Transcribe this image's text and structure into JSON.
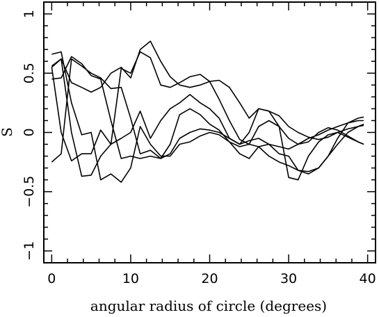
{
  "chart_data": {
    "type": "line",
    "title": "",
    "xlabel": "angular radius of circle (degrees)",
    "ylabel": "S",
    "xlim": [
      -1,
      41
    ],
    "ylim": [
      -1.1,
      1.1
    ],
    "xticks": [
      0,
      10,
      20,
      30,
      40
    ],
    "xtick_labels": [
      "0",
      "10",
      "20",
      "30",
      "40"
    ],
    "yticks": [
      -1,
      -0.5,
      0,
      0.5,
      1
    ],
    "ytick_labels": [
      "−1",
      "−0.5",
      "0",
      "0.5",
      "1"
    ],
    "grid": false,
    "legend": "none",
    "line_color": "#000000",
    "series": [
      {
        "x": [
          0,
          1.2,
          2.5,
          3.8,
          5,
          6.2,
          7.5,
          8.8,
          10,
          11.2,
          12.5,
          13.8,
          15,
          16.2,
          17.5,
          18.8,
          20,
          21.2,
          22.5,
          23.8,
          25,
          26.2,
          27.5,
          28.8,
          30,
          31.2,
          32.5,
          33.8,
          35,
          36.2,
          37.5,
          38.8,
          39.5
        ],
        "y": [
          0.66,
          0.68,
          0.25,
          -0.02,
          0.0,
          -0.4,
          -0.35,
          -0.42,
          -0.3,
          0.05,
          -0.1,
          -0.2,
          -0.2,
          -0.1,
          -0.08,
          -0.03,
          0.0,
          -0.02,
          -0.08,
          -0.12,
          -0.1,
          -0.12,
          -0.2,
          -0.25,
          -0.28,
          -0.32,
          -0.33,
          -0.3,
          -0.2,
          -0.1,
          0.0,
          0.05,
          0.07
        ]
      },
      {
        "x": [
          0,
          1.2,
          2.5,
          3.8,
          5,
          6.2,
          7.5,
          8.8,
          10,
          11.2,
          12.5,
          13.8,
          15,
          16.2,
          17.5,
          18.8,
          20,
          21.2,
          22.5,
          23.8,
          25,
          26.2,
          27.5,
          28.8,
          30,
          31.2,
          32.5,
          33.8,
          35,
          36.2,
          37.5,
          38.8,
          39.5
        ],
        "y": [
          0.56,
          0.62,
          0.42,
          0.38,
          0.34,
          0.38,
          0.5,
          0.55,
          0.46,
          0.7,
          0.77,
          0.6,
          0.47,
          0.4,
          0.38,
          0.4,
          0.43,
          0.44,
          0.38,
          0.25,
          0.12,
          0.2,
          0.18,
          0.14,
          0.05,
          0.0,
          -0.04,
          -0.06,
          -0.04,
          0.0,
          0.03,
          0.05,
          0.06
        ]
      },
      {
        "x": [
          0,
          1.2,
          2.5,
          3.8,
          5,
          6.2,
          7.5,
          8.8,
          10,
          11.2,
          12.5,
          13.8,
          15,
          16.2,
          17.5,
          18.8,
          20,
          21.2,
          22.5,
          23.8,
          25,
          26.2,
          27.5,
          28.8,
          30,
          31.2,
          32.5,
          33.8,
          35,
          36.2,
          37.5,
          38.8,
          39.5
        ],
        "y": [
          -0.25,
          -0.18,
          0.62,
          0.56,
          0.5,
          0.46,
          0.37,
          0.38,
          0.12,
          -0.18,
          -0.15,
          -0.22,
          -0.18,
          -0.05,
          0.0,
          0.03,
          0.02,
          0.0,
          -0.05,
          -0.1,
          -0.07,
          -0.05,
          -0.1,
          -0.12,
          -0.14,
          -0.1,
          -0.05,
          -0.02,
          0.02,
          0.05,
          0.08,
          0.1,
          0.1
        ]
      },
      {
        "x": [
          0,
          1.2,
          2.5,
          3.8,
          5,
          6.2,
          7.5,
          8.8,
          10,
          11.2,
          12.5,
          13.8,
          15,
          16.2,
          17.5,
          18.8,
          20,
          21.2,
          22.5,
          23.8,
          25,
          26.2,
          27.5,
          28.8,
          30,
          31.2,
          32.5,
          33.8,
          35,
          36.2,
          37.5,
          38.8,
          39.5
        ],
        "y": [
          0.45,
          0.46,
          0.64,
          0.58,
          0.48,
          0.45,
          0.1,
          -0.22,
          -0.2,
          -0.22,
          -0.2,
          -0.22,
          -0.1,
          0.15,
          0.2,
          0.15,
          0.07,
          0.02,
          -0.08,
          -0.18,
          -0.22,
          -0.12,
          -0.1,
          -0.18,
          -0.2,
          -0.32,
          -0.35,
          -0.3,
          -0.2,
          -0.05,
          0.08,
          0.12,
          0.13
        ]
      },
      {
        "x": [
          0,
          1.2,
          2.5,
          3.8,
          5,
          6.2,
          7.5,
          8.8,
          10,
          11.2,
          12.5,
          13.8,
          15,
          16.2,
          17.5,
          18.8,
          20,
          21.2,
          22.5,
          23.8,
          25,
          26.2,
          27.5,
          28.8,
          30,
          31.2,
          32.5,
          33.8,
          35,
          36.2,
          37.5,
          38.8,
          39.5
        ],
        "y": [
          0.55,
          0.0,
          -0.24,
          -0.18,
          -0.18,
          0.02,
          -0.1,
          0.54,
          0.5,
          0.68,
          0.63,
          0.4,
          0.38,
          0.42,
          0.47,
          0.49,
          0.43,
          0.28,
          0.1,
          -0.06,
          -0.1,
          0.05,
          0.1,
          0.05,
          -0.05,
          -0.1,
          -0.08,
          0.0,
          0.04,
          0.02,
          -0.03,
          -0.08,
          -0.1
        ]
      },
      {
        "x": [
          0,
          1.2,
          2.5,
          3.8,
          5,
          6.2,
          7.5,
          8.8,
          10,
          11.2,
          12.5,
          13.8,
          15,
          16.2,
          17.5,
          18.8,
          20,
          21.2,
          22.5,
          23.8,
          25,
          26.2,
          27.5,
          28.8,
          30,
          31.2,
          32.5,
          33.8,
          35,
          36.2,
          37.5,
          38.8,
          39.5
        ],
        "y": [
          0.55,
          0.62,
          0.0,
          -0.37,
          -0.36,
          -0.2,
          -0.1,
          -0.05,
          0.0,
          0.18,
          -0.05,
          0.1,
          0.2,
          0.25,
          0.32,
          0.25,
          0.2,
          0.12,
          -0.05,
          -0.1,
          0.0,
          0.2,
          0.18,
          0.05,
          -0.38,
          -0.4,
          -0.2,
          -0.08,
          -0.02,
          0.0,
          -0.04,
          -0.08,
          -0.1
        ]
      }
    ]
  }
}
